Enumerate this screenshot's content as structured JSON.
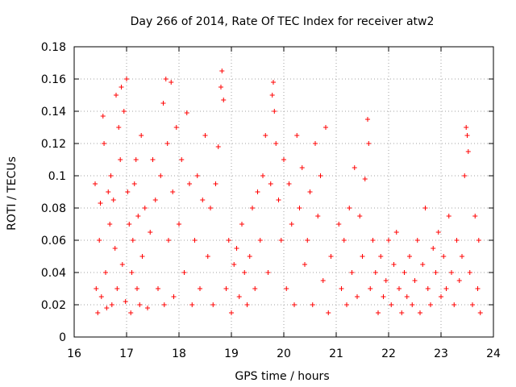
{
  "chart_data": {
    "type": "scatter",
    "title": "Day 266 of 2014, Rate Of TEC Index for receiver atw2",
    "xlabel": "GPS time / hours",
    "ylabel": "ROTI / TECUs",
    "xlim": [
      16,
      24
    ],
    "ylim": [
      0,
      0.18
    ],
    "xticks": [
      "16",
      "17",
      "18",
      "19",
      "20",
      "21",
      "22",
      "23",
      "24"
    ],
    "yticks": [
      "0",
      "0.02",
      "0.04",
      "0.06",
      "0.08",
      "0.1",
      "0.12",
      "0.14",
      "0.16",
      "0.18"
    ],
    "grid": true,
    "marker": "+",
    "color": "#ff0000",
    "series": [
      {
        "name": "ROTI",
        "points": [
          [
            16.4,
            0.095
          ],
          [
            16.42,
            0.03
          ],
          [
            16.45,
            0.015
          ],
          [
            16.48,
            0.06
          ],
          [
            16.5,
            0.083
          ],
          [
            16.52,
            0.025
          ],
          [
            16.55,
            0.137
          ],
          [
            16.57,
            0.12
          ],
          [
            16.6,
            0.04
          ],
          [
            16.62,
            0.018
          ],
          [
            16.65,
            0.09
          ],
          [
            16.68,
            0.07
          ],
          [
            16.7,
            0.1
          ],
          [
            16.72,
            0.02
          ],
          [
            16.75,
            0.085
          ],
          [
            16.78,
            0.055
          ],
          [
            16.8,
            0.15
          ],
          [
            16.82,
            0.03
          ],
          [
            16.85,
            0.13
          ],
          [
            16.88,
            0.11
          ],
          [
            16.9,
            0.155
          ],
          [
            16.92,
            0.045
          ],
          [
            16.95,
            0.14
          ],
          [
            16.98,
            0.022
          ],
          [
            17.0,
            0.16
          ],
          [
            17.02,
            0.09
          ],
          [
            17.05,
            0.07
          ],
          [
            17.08,
            0.015
          ],
          [
            17.1,
            0.04
          ],
          [
            17.12,
            0.06
          ],
          [
            17.15,
            0.095
          ],
          [
            17.18,
            0.11
          ],
          [
            17.2,
            0.03
          ],
          [
            17.22,
            0.075
          ],
          [
            17.25,
            0.02
          ],
          [
            17.28,
            0.125
          ],
          [
            17.3,
            0.05
          ],
          [
            17.35,
            0.08
          ],
          [
            17.4,
            0.018
          ],
          [
            17.45,
            0.065
          ],
          [
            17.5,
            0.11
          ],
          [
            17.55,
            0.085
          ],
          [
            17.6,
            0.03
          ],
          [
            17.65,
            0.1
          ],
          [
            17.7,
            0.145
          ],
          [
            17.72,
            0.02
          ],
          [
            17.75,
            0.16
          ],
          [
            17.78,
            0.12
          ],
          [
            17.8,
            0.06
          ],
          [
            17.85,
            0.158
          ],
          [
            17.88,
            0.09
          ],
          [
            17.9,
            0.025
          ],
          [
            17.95,
            0.13
          ],
          [
            18.0,
            0.07
          ],
          [
            18.05,
            0.11
          ],
          [
            18.1,
            0.04
          ],
          [
            18.15,
            0.139
          ],
          [
            18.2,
            0.095
          ],
          [
            18.25,
            0.02
          ],
          [
            18.3,
            0.06
          ],
          [
            18.35,
            0.1
          ],
          [
            18.4,
            0.03
          ],
          [
            18.45,
            0.085
          ],
          [
            18.5,
            0.125
          ],
          [
            18.55,
            0.05
          ],
          [
            18.6,
            0.08
          ],
          [
            18.65,
            0.02
          ],
          [
            18.7,
            0.095
          ],
          [
            18.75,
            0.118
          ],
          [
            18.8,
            0.155
          ],
          [
            18.82,
            0.165
          ],
          [
            18.85,
            0.147
          ],
          [
            18.9,
            0.03
          ],
          [
            18.95,
            0.06
          ],
          [
            19.0,
            0.015
          ],
          [
            19.05,
            0.045
          ],
          [
            19.1,
            0.055
          ],
          [
            19.15,
            0.025
          ],
          [
            19.2,
            0.07
          ],
          [
            19.25,
            0.04
          ],
          [
            19.3,
            0.02
          ],
          [
            19.35,
            0.05
          ],
          [
            19.4,
            0.08
          ],
          [
            19.45,
            0.03
          ],
          [
            19.5,
            0.09
          ],
          [
            19.55,
            0.06
          ],
          [
            19.6,
            0.1
          ],
          [
            19.65,
            0.125
          ],
          [
            19.7,
            0.04
          ],
          [
            19.75,
            0.095
          ],
          [
            19.78,
            0.15
          ],
          [
            19.8,
            0.158
          ],
          [
            19.82,
            0.14
          ],
          [
            19.85,
            0.12
          ],
          [
            19.9,
            0.085
          ],
          [
            19.95,
            0.06
          ],
          [
            20.0,
            0.11
          ],
          [
            20.05,
            0.03
          ],
          [
            20.1,
            0.095
          ],
          [
            20.15,
            0.07
          ],
          [
            20.2,
            0.02
          ],
          [
            20.25,
            0.125
          ],
          [
            20.3,
            0.08
          ],
          [
            20.35,
            0.105
          ],
          [
            20.4,
            0.045
          ],
          [
            20.45,
            0.06
          ],
          [
            20.5,
            0.09
          ],
          [
            20.55,
            0.02
          ],
          [
            20.6,
            0.12
          ],
          [
            20.65,
            0.075
          ],
          [
            20.7,
            0.1
          ],
          [
            20.75,
            0.035
          ],
          [
            20.8,
            0.13
          ],
          [
            20.85,
            0.015
          ],
          [
            20.9,
            0.05
          ],
          [
            21.05,
            0.07
          ],
          [
            21.1,
            0.03
          ],
          [
            21.15,
            0.06
          ],
          [
            21.2,
            0.02
          ],
          [
            21.25,
            0.08
          ],
          [
            21.3,
            0.04
          ],
          [
            21.35,
            0.105
          ],
          [
            21.4,
            0.025
          ],
          [
            21.45,
            0.075
          ],
          [
            21.5,
            0.05
          ],
          [
            21.55,
            0.098
          ],
          [
            21.6,
            0.135
          ],
          [
            21.62,
            0.12
          ],
          [
            21.65,
            0.03
          ],
          [
            21.7,
            0.06
          ],
          [
            21.75,
            0.04
          ],
          [
            21.8,
            0.015
          ],
          [
            21.85,
            0.05
          ],
          [
            21.9,
            0.025
          ],
          [
            21.95,
            0.035
          ],
          [
            22.0,
            0.06
          ],
          [
            22.05,
            0.02
          ],
          [
            22.1,
            0.045
          ],
          [
            22.15,
            0.065
          ],
          [
            22.2,
            0.03
          ],
          [
            22.25,
            0.015
          ],
          [
            22.3,
            0.04
          ],
          [
            22.35,
            0.025
          ],
          [
            22.4,
            0.05
          ],
          [
            22.45,
            0.02
          ],
          [
            22.5,
            0.035
          ],
          [
            22.55,
            0.06
          ],
          [
            22.6,
            0.015
          ],
          [
            22.65,
            0.045
          ],
          [
            22.7,
            0.08
          ],
          [
            22.75,
            0.03
          ],
          [
            22.8,
            0.02
          ],
          [
            22.85,
            0.055
          ],
          [
            22.9,
            0.04
          ],
          [
            22.95,
            0.065
          ],
          [
            23.0,
            0.025
          ],
          [
            23.05,
            0.05
          ],
          [
            23.1,
            0.03
          ],
          [
            23.15,
            0.075
          ],
          [
            23.2,
            0.04
          ],
          [
            23.25,
            0.02
          ],
          [
            23.3,
            0.06
          ],
          [
            23.35,
            0.035
          ],
          [
            23.4,
            0.05
          ],
          [
            23.45,
            0.1
          ],
          [
            23.48,
            0.13
          ],
          [
            23.5,
            0.125
          ],
          [
            23.52,
            0.115
          ],
          [
            23.55,
            0.04
          ],
          [
            23.6,
            0.02
          ],
          [
            23.65,
            0.075
          ],
          [
            23.7,
            0.03
          ],
          [
            23.72,
            0.06
          ],
          [
            23.75,
            0.015
          ]
        ]
      }
    ]
  }
}
